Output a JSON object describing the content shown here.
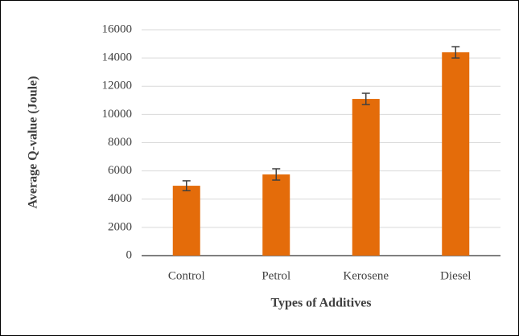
{
  "chart_data": {
    "type": "bar",
    "x_label": "Types of Additives",
    "y_label": "Average Q-value (Joule)",
    "categories": [
      "Control",
      "Petrol",
      "Kerosene",
      "Diesel"
    ],
    "values": [
      4950,
      5750,
      11100,
      14400
    ],
    "errors": [
      350,
      400,
      400,
      400
    ],
    "color": "#e46c0a",
    "ylim": [
      0,
      16000
    ],
    "yticks": [
      0,
      2000,
      4000,
      6000,
      8000,
      10000,
      12000,
      14000,
      16000
    ],
    "grid": true
  }
}
